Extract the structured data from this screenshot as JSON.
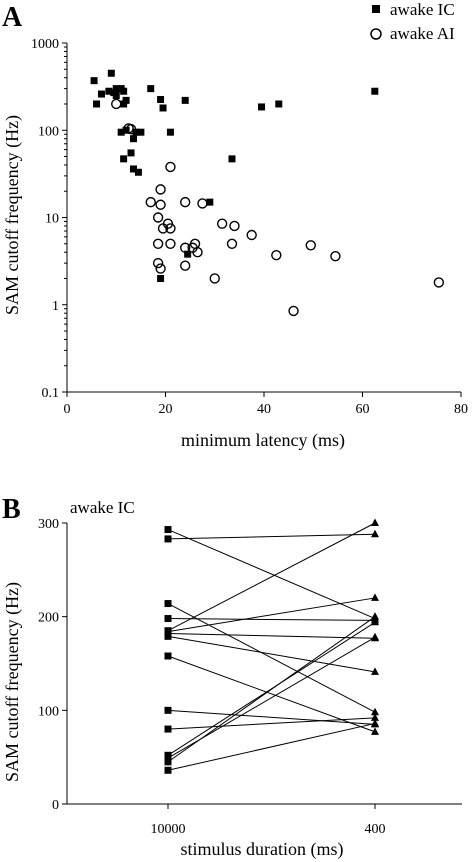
{
  "chart_data": [
    {
      "panel": "A",
      "type": "scatter",
      "xlabel": "minimum latency (ms)",
      "ylabel": "SAM cutoff frequency (Hz)",
      "xlim": [
        0,
        80
      ],
      "ylim": [
        0.1,
        1000
      ],
      "yscale": "log",
      "x_ticks": [
        "0",
        "20",
        "40",
        "60",
        "80"
      ],
      "y_ticks": [
        "0.1",
        "1",
        "10",
        "100",
        "1000"
      ],
      "legend_position": "top-right",
      "series": [
        {
          "name": "awake IC",
          "marker": "filled-square",
          "points": [
            [
              5.5,
              370
            ],
            [
              6,
              200
            ],
            [
              7,
              260
            ],
            [
              8.5,
              280
            ],
            [
              9,
              450
            ],
            [
              9.5,
              270
            ],
            [
              10,
              300
            ],
            [
              10,
              250
            ],
            [
              11,
              300
            ],
            [
              11.5,
              280
            ],
            [
              11.5,
              200
            ],
            [
              12,
              220
            ],
            [
              11,
              95
            ],
            [
              12,
              100
            ],
            [
              11.5,
              47
            ],
            [
              13,
              55
            ],
            [
              13.5,
              80
            ],
            [
              14,
              95
            ],
            [
              13.5,
              36
            ],
            [
              14.5,
              33
            ],
            [
              15,
              95
            ],
            [
              17,
              300
            ],
            [
              19,
              225
            ],
            [
              19.5,
              180
            ],
            [
              21,
              95
            ],
            [
              24,
              220
            ],
            [
              33.5,
              47
            ],
            [
              29,
              15
            ],
            [
              24.5,
              3.8
            ],
            [
              19,
              2
            ],
            [
              39.5,
              185
            ],
            [
              43,
              200
            ],
            [
              62.5,
              280
            ]
          ]
        },
        {
          "name": "awake AI",
          "marker": "open-circle",
          "points": [
            [
              10,
              200
            ],
            [
              12.5,
              105
            ],
            [
              13,
              103
            ],
            [
              17,
              15
            ],
            [
              19,
              21
            ],
            [
              19,
              14
            ],
            [
              18.5,
              10
            ],
            [
              19.5,
              7.5
            ],
            [
              20.5,
              8.5
            ],
            [
              21,
              7.5
            ],
            [
              18.5,
              5
            ],
            [
              21,
              5
            ],
            [
              21,
              38
            ],
            [
              24,
              15
            ],
            [
              27.5,
              14.5
            ],
            [
              31.5,
              8.5
            ],
            [
              34,
              8
            ],
            [
              37.5,
              6.3
            ],
            [
              24,
              4.5
            ],
            [
              25.5,
              4.5
            ],
            [
              26,
              5
            ],
            [
              26.5,
              4
            ],
            [
              33.5,
              5
            ],
            [
              18.5,
              3
            ],
            [
              19,
              2.6
            ],
            [
              24,
              2.8
            ],
            [
              30,
              2
            ],
            [
              42.5,
              3.7
            ],
            [
              46,
              0.85
            ],
            [
              49.5,
              4.8
            ],
            [
              54.5,
              3.6
            ],
            [
              75.5,
              1.8
            ]
          ]
        }
      ]
    },
    {
      "panel": "B",
      "type": "line",
      "annotation": "awake IC",
      "xlabel": "stimulus duration (ms)",
      "ylabel": "SAM cutoff frequency (Hz)",
      "categories": [
        "10000",
        "400"
      ],
      "ylim": [
        0,
        300
      ],
      "y_ticks": [
        "0",
        "100",
        "200",
        "300"
      ],
      "start_marker": "filled-square",
      "end_marker": "filled-triangle",
      "pairs": [
        [
          293,
          198
        ],
        [
          283,
          288
        ],
        [
          214,
          98
        ],
        [
          198,
          196
        ],
        [
          185,
          300
        ],
        [
          184,
          220
        ],
        [
          182,
          177
        ],
        [
          179,
          141
        ],
        [
          158,
          77
        ],
        [
          100,
          85
        ],
        [
          80,
          92
        ],
        [
          52,
          194
        ],
        [
          49,
          178
        ],
        [
          45,
          200
        ],
        [
          36,
          86
        ]
      ]
    }
  ],
  "legend": {
    "ic_label": "awake IC",
    "ai_label": "awake AI"
  }
}
